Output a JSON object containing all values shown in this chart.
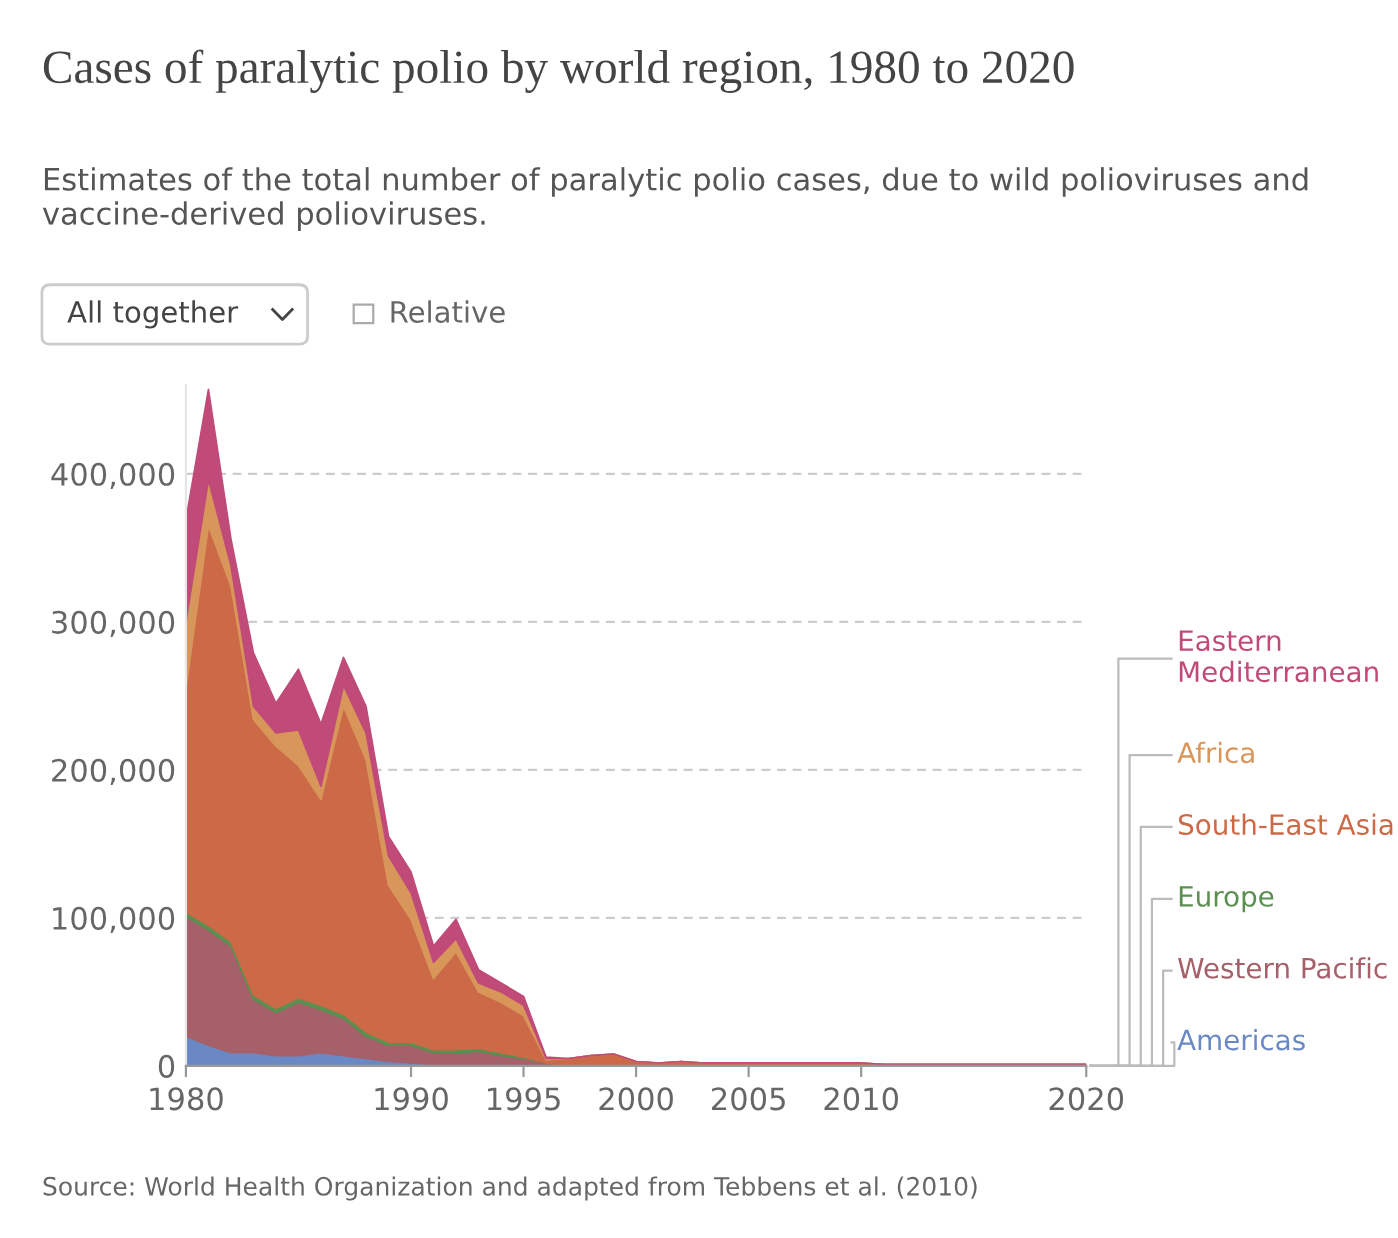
{
  "chart_data": {
    "type": "area",
    "stacked": true,
    "title": "Cases of paralytic polio by world region, 1980 to 2020",
    "subtitle": "Estimates of the total number of paralytic polio cases, due to wild polioviruses and vaccine-derived polioviruses.",
    "annotations": [
      "All together",
      "Relative",
      "Source: World Health Organization and adapted from Tebbens et al. (2010)"
    ],
    "x": [
      1980,
      1981,
      1982,
      1983,
      1984,
      1985,
      1986,
      1987,
      1988,
      1989,
      1990,
      1991,
      1992,
      1993,
      1994,
      1995,
      1996,
      1997,
      1998,
      1999,
      2000,
      2001,
      2002,
      2003,
      2004,
      2005,
      2006,
      2007,
      2008,
      2009,
      2010,
      2011,
      2012,
      2013,
      2014,
      2015,
      2016,
      2017,
      2018,
      2019,
      2020
    ],
    "series": [
      {
        "name": "Americas",
        "color": "#6a89c4",
        "values": [
          20000,
          14000,
          9000,
          9000,
          7000,
          7000,
          9000,
          7000,
          5000,
          3000,
          2000,
          1000,
          1000,
          1000,
          1000,
          0,
          0,
          0,
          0,
          0,
          0,
          0,
          0,
          0,
          0,
          0,
          0,
          0,
          0,
          0,
          0,
          0,
          0,
          0,
          0,
          0,
          0,
          0,
          0,
          0,
          0
        ]
      },
      {
        "name": "Western Pacific",
        "color": "#a5606a",
        "values": [
          81000,
          78000,
          72000,
          36000,
          29000,
          36000,
          29000,
          25000,
          15000,
          11000,
          12000,
          8000,
          8000,
          9000,
          6000,
          5000,
          2000,
          0,
          0,
          0,
          0,
          0,
          0,
          0,
          0,
          0,
          0,
          0,
          0,
          0,
          0,
          0,
          0,
          0,
          0,
          0,
          0,
          0,
          0,
          0,
          0
        ]
      },
      {
        "name": "Europe",
        "color": "#5b8f50",
        "values": [
          3000,
          3000,
          3000,
          3000,
          3000,
          3000,
          3000,
          3000,
          3000,
          2000,
          2000,
          2000,
          2000,
          2000,
          2000,
          1000,
          0,
          0,
          0,
          0,
          0,
          0,
          0,
          0,
          0,
          0,
          0,
          0,
          0,
          0,
          0,
          0,
          0,
          0,
          0,
          0,
          0,
          0,
          0,
          0,
          0
        ]
      },
      {
        "name": "South-East Asia",
        "color": "#cc6a48",
        "values": [
          151000,
          270000,
          240000,
          186000,
          177000,
          157000,
          139000,
          208000,
          184000,
          106000,
          83000,
          48000,
          66000,
          38000,
          34000,
          28000,
          2000,
          5000,
          7000,
          8000,
          3000,
          2000,
          3000,
          2000,
          2000,
          2000,
          2000,
          2000,
          2000,
          2000,
          2000,
          1000,
          1000,
          1000,
          1000,
          1000,
          1000,
          1000,
          1000,
          1000,
          1000
        ]
      },
      {
        "name": "Africa",
        "color": "#d9965a",
        "values": [
          45000,
          31000,
          14000,
          9000,
          9000,
          24000,
          9000,
          14000,
          18000,
          20000,
          18000,
          11000,
          9000,
          6000,
          7000,
          7000,
          1000,
          0,
          0,
          0,
          0,
          0,
          0,
          0,
          0,
          0,
          0,
          0,
          0,
          0,
          0,
          0,
          0,
          0,
          0,
          0,
          0,
          0,
          0,
          0,
          0
        ]
      },
      {
        "name": "Eastern Mediterranean",
        "color": "#c04a78",
        "values": [
          69000,
          61000,
          18000,
          36000,
          20000,
          41000,
          42000,
          19000,
          18000,
          13000,
          14000,
          11000,
          13000,
          9000,
          6000,
          6000,
          1000,
          0,
          0,
          0,
          0,
          0,
          0,
          0,
          0,
          0,
          0,
          0,
          0,
          0,
          0,
          0,
          0,
          0,
          0,
          0,
          0,
          0,
          0,
          0,
          0
        ]
      }
    ],
    "xlim": [
      1980,
      2020
    ],
    "ylim": [
      0,
      460000
    ],
    "xticks": [
      1980,
      1990,
      1995,
      2000,
      2005,
      2010,
      2020
    ],
    "yticks": [
      0,
      {
        "value": 100000,
        "label": "100,000"
      },
      {
        "value": 200000,
        "label": "200,000"
      },
      {
        "value": 300000,
        "label": "300,000"
      },
      {
        "value": 400000,
        "label": "400,000"
      }
    ],
    "grid": "y",
    "legend": "right"
  }
}
